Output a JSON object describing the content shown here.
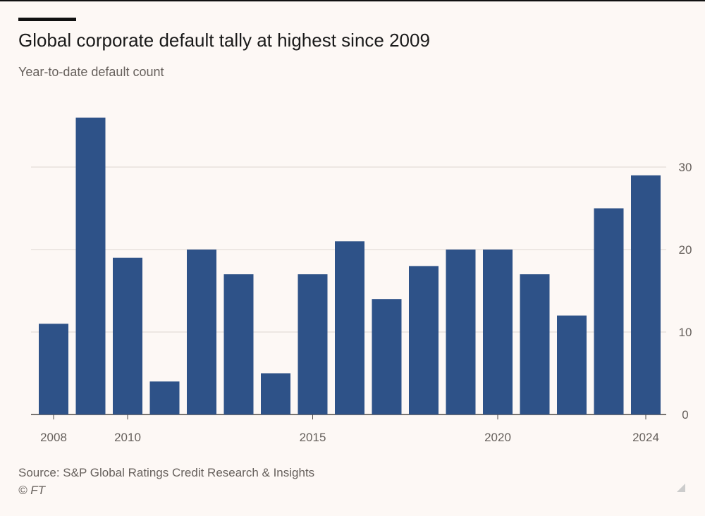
{
  "chart_data": {
    "type": "bar",
    "title": "Global corporate default tally at highest since 2009",
    "subtitle": "Year-to-date default count",
    "categories": [
      "2008",
      "2009",
      "2010",
      "2011",
      "2012",
      "2013",
      "2014",
      "2015",
      "2016",
      "2017",
      "2018",
      "2019",
      "2020",
      "2021",
      "2022",
      "2023",
      "2024"
    ],
    "values": [
      11,
      36,
      19,
      4,
      20,
      17,
      5,
      17,
      21,
      14,
      18,
      20,
      20,
      17,
      12,
      25,
      29
    ],
    "x_tick_labels": [
      "2008",
      "2010",
      "2015",
      "2020",
      "2024"
    ],
    "y_ticks": [
      0,
      10,
      20,
      30
    ],
    "ylim": [
      0,
      36
    ],
    "y_axis_side": "right",
    "grid": true,
    "bar_color": "#2e5288",
    "source": "Source: S&P Global Ratings Credit Research & Insights",
    "copyright": "© FT"
  }
}
